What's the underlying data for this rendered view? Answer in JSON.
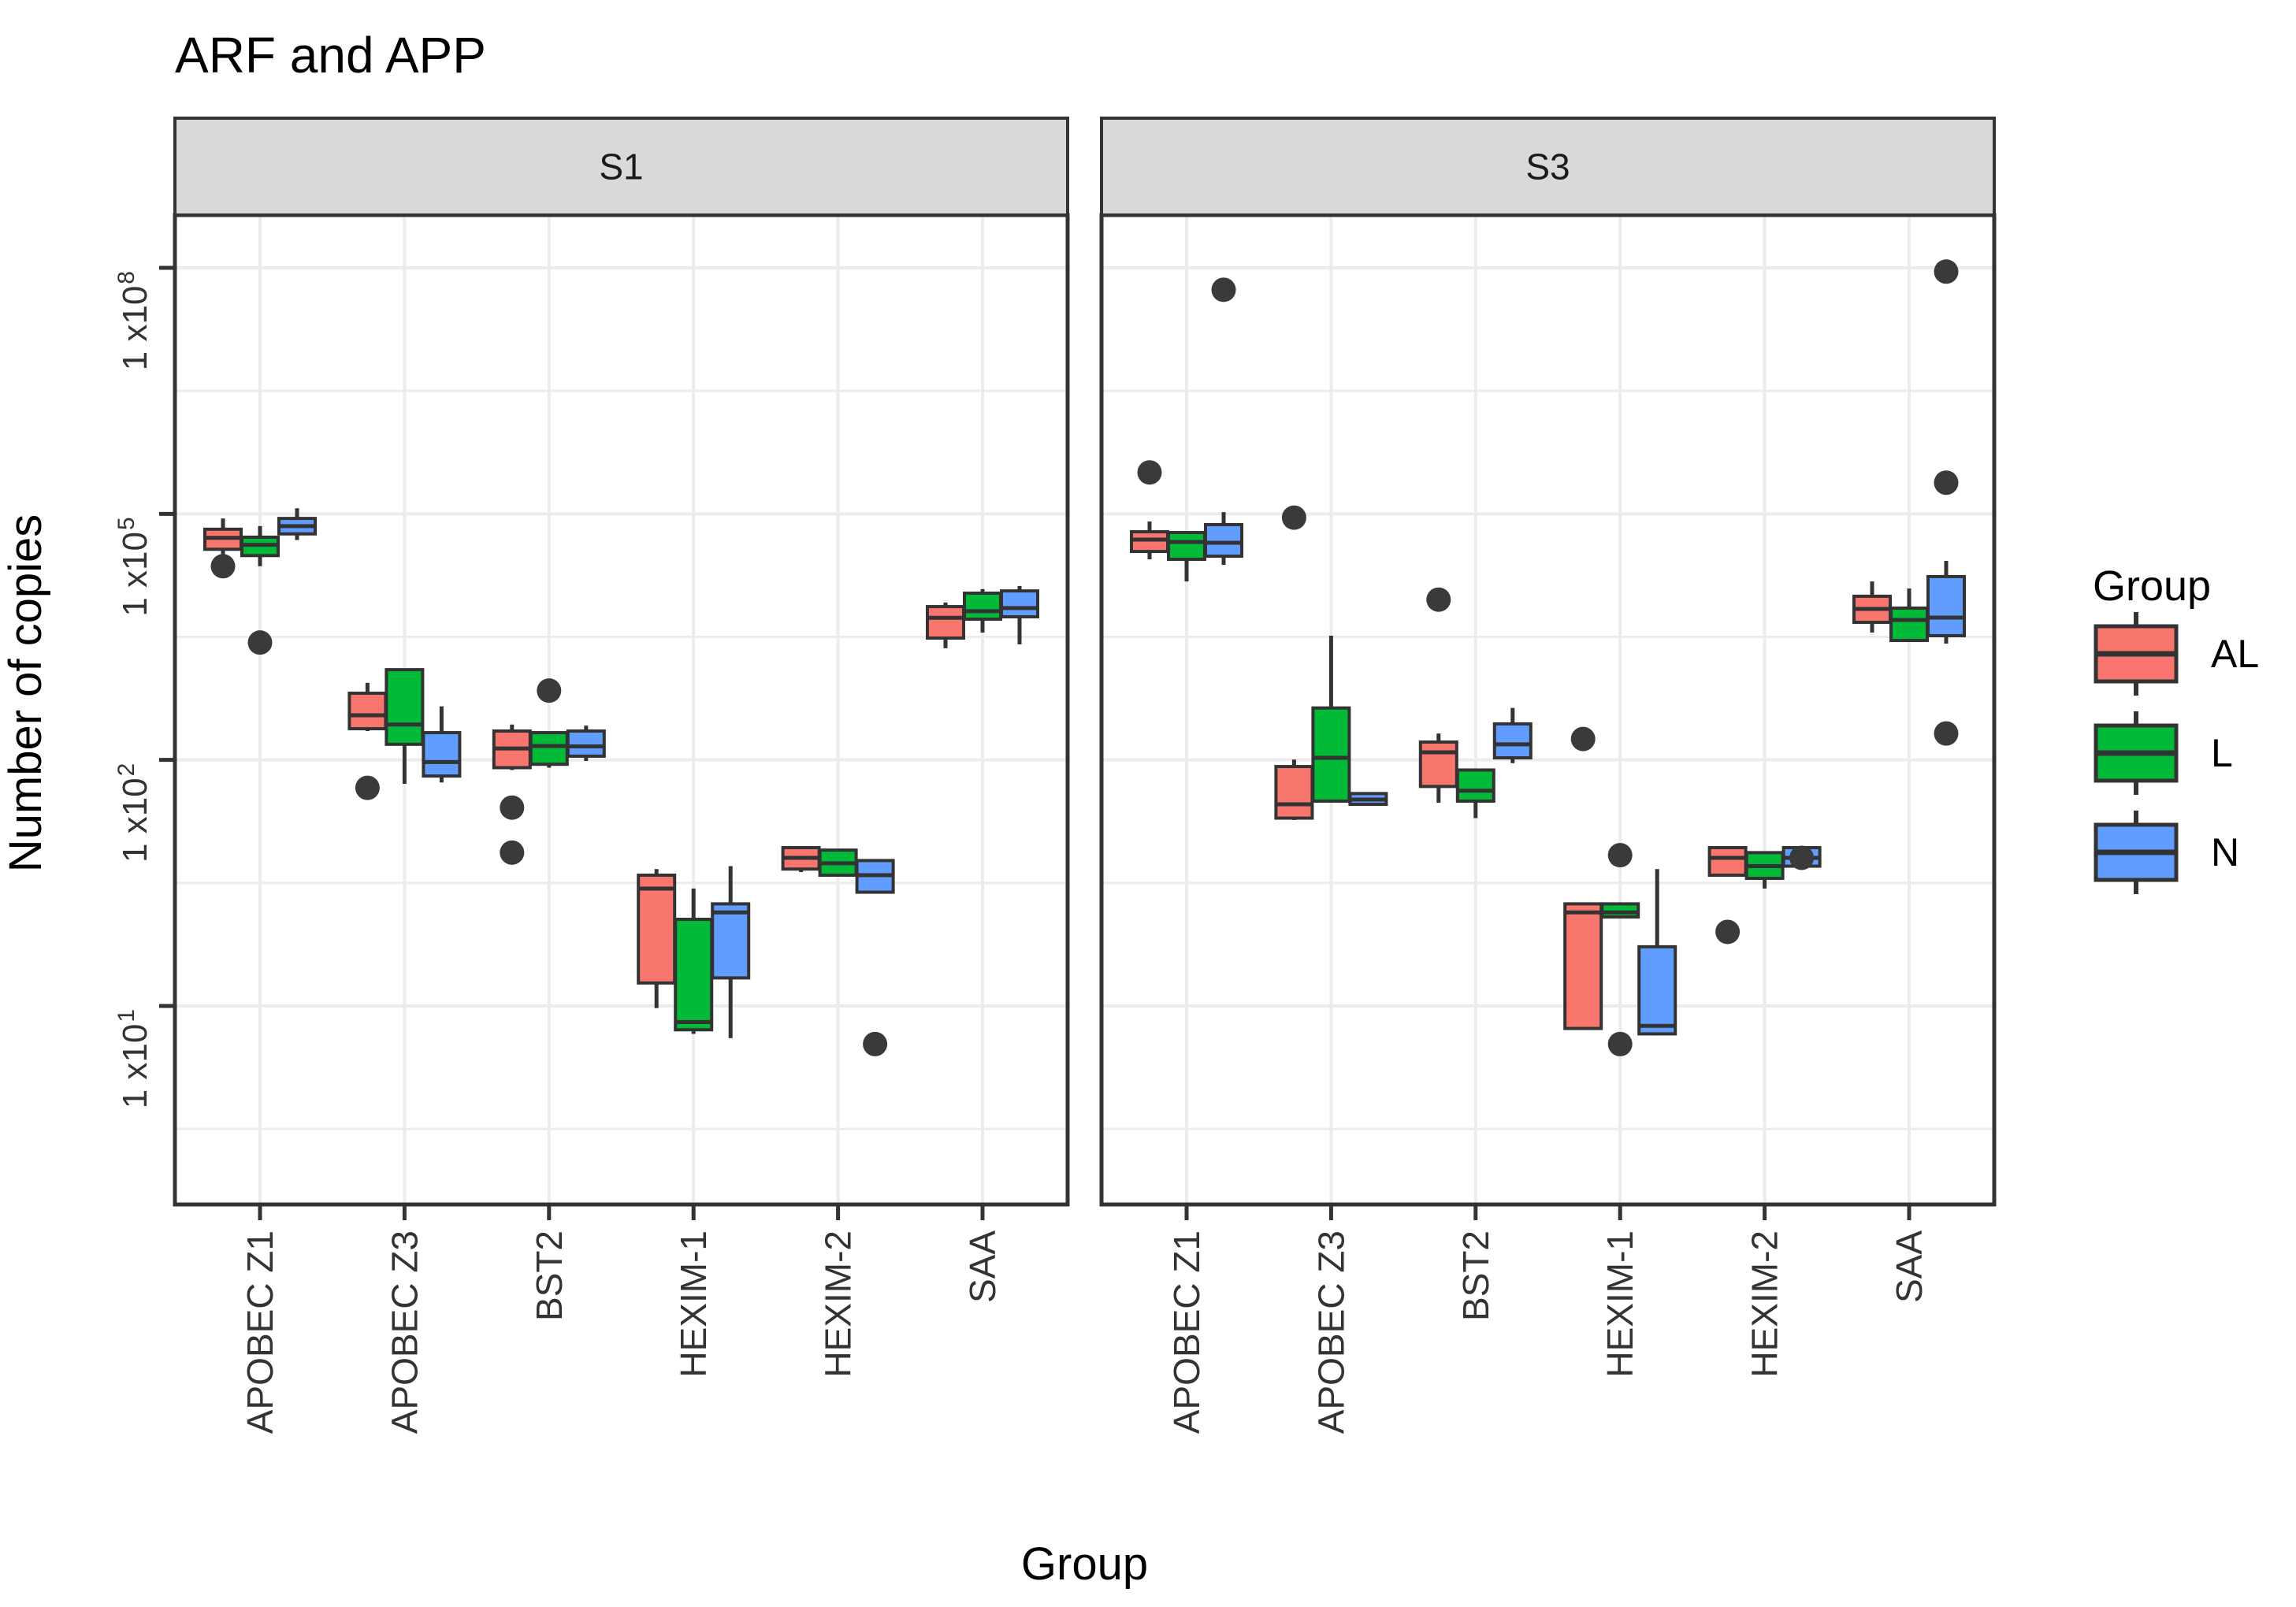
{
  "title": "ARF and APP",
  "facets": [
    "S1",
    "S3"
  ],
  "y_axis": {
    "title": "Number of copies",
    "ticks": [
      {
        "base": "1 x10",
        "exp": "8",
        "value": 100000000
      },
      {
        "base": "1 x10",
        "exp": "5",
        "value": 100000
      },
      {
        "base": "1 x10",
        "exp": "2",
        "value": 100
      },
      {
        "base": "1 x10",
        "exp": "1",
        "value": 10
      }
    ]
  },
  "x_axis": {
    "title": "Group",
    "categories": [
      "APOBEC Z1",
      "APOBEC Z3",
      "BST2",
      "HEXIM-1",
      "HEXIM-2",
      "SAA"
    ]
  },
  "legend": {
    "title": "Group",
    "entries": [
      {
        "label": "AL",
        "color": "#f8766d"
      },
      {
        "label": "L",
        "color": "#00ba38"
      },
      {
        "label": "N",
        "color": "#619cff"
      }
    ]
  },
  "style": {
    "box_border": "#333333",
    "dot_color": "#3a3a3a",
    "grid_color": "#ececec",
    "strip_fill": "#d9d9d9",
    "tick_text_color": "#333333",
    "text_color": "#000000"
  },
  "chart_data": {
    "type": "boxplot",
    "title": "ARF and APP",
    "ylabel": "Number of copies",
    "xlabel": "Group",
    "facets": [
      "S1",
      "S3"
    ],
    "categories": [
      "APOBEC Z1",
      "APOBEC Z3",
      "BST2",
      "HEXIM-1",
      "HEXIM-2",
      "SAA"
    ],
    "groups": [
      "AL",
      "L",
      "N"
    ],
    "y_scale": {
      "type": "log10-equal-spaced-breaks",
      "breaks": [
        100000000,
        100000,
        100,
        10
      ],
      "note": "labeled breaks are equally spaced on the axis; values interpolate log-linearly between adjacent breaks",
      "grid": true,
      "legend_position": "right"
    },
    "boxes": [
      {
        "facet": "S1",
        "category": "APOBEC Z1",
        "group": "AL",
        "whislo": 27000,
        "q1": 37000,
        "med": 51000,
        "q3": 65000,
        "whishi": 88000,
        "outliers": [
          23000
        ]
      },
      {
        "facet": "S1",
        "category": "APOBEC Z1",
        "group": "L",
        "whislo": 23000,
        "q1": 31000,
        "med": 42000,
        "q3": 52000,
        "whishi": 71000,
        "outliers": [
          2700
        ]
      },
      {
        "facet": "S1",
        "category": "APOBEC Z1",
        "group": "N",
        "whislo": 48000,
        "q1": 57000,
        "med": 71000,
        "q3": 88000,
        "whishi": 117000,
        "outliers": []
      },
      {
        "facet": "S1",
        "category": "APOBEC Z3",
        "group": "AL",
        "whislo": 225,
        "q1": 240,
        "med": 350,
        "q3": 650,
        "whishi": 870,
        "outliers": [
          77
        ]
      },
      {
        "facet": "S1",
        "category": "APOBEC Z3",
        "group": "L",
        "whislo": 80,
        "q1": 155,
        "med": 270,
        "q3": 1260,
        "whishi": 1260,
        "outliers": []
      },
      {
        "facet": "S1",
        "category": "APOBEC Z3",
        "group": "N",
        "whislo": 81,
        "q1": 86,
        "med": 98,
        "q3": 215,
        "whishi": 450,
        "outliers": []
      },
      {
        "facet": "S1",
        "category": "BST2",
        "group": "AL",
        "whislo": 91,
        "q1": 93,
        "med": 138,
        "q3": 225,
        "whishi": 270,
        "outliers": [
          64,
          42
        ]
      },
      {
        "facet": "S1",
        "category": "BST2",
        "group": "L",
        "whislo": 93,
        "q1": 96,
        "med": 148,
        "q3": 215,
        "whishi": 215,
        "outliers": [
          700
        ]
      },
      {
        "facet": "S1",
        "category": "BST2",
        "group": "N",
        "whislo": 99,
        "q1": 111,
        "med": 146,
        "q3": 225,
        "whishi": 262,
        "outliers": []
      },
      {
        "facet": "S1",
        "category": "HEXIM-1",
        "group": "AL",
        "whislo": 9.8,
        "q1": 12.4,
        "med": 30,
        "q3": 34,
        "whishi": 36,
        "outliers": []
      },
      {
        "facet": "S1",
        "category": "HEXIM-1",
        "group": "L",
        "whislo": 7.7,
        "q1": 8,
        "med": 8.6,
        "q3": 22.5,
        "whishi": 30,
        "outliers": []
      },
      {
        "facet": "S1",
        "category": "HEXIM-1",
        "group": "N",
        "whislo": 7.4,
        "q1": 13,
        "med": 24,
        "q3": 26,
        "whishi": 37,
        "outliers": []
      },
      {
        "facet": "S1",
        "category": "HEXIM-2",
        "group": "AL",
        "whislo": 35,
        "q1": 36,
        "med": 40,
        "q3": 44,
        "whishi": 44,
        "outliers": []
      },
      {
        "facet": "S1",
        "category": "HEXIM-2",
        "group": "L",
        "whislo": 34,
        "q1": 34,
        "med": 38,
        "q3": 43,
        "whishi": 43,
        "outliers": []
      },
      {
        "facet": "S1",
        "category": "HEXIM-2",
        "group": "N",
        "whislo": 29,
        "q1": 29,
        "med": 34,
        "q3": 39,
        "whishi": 39,
        "outliers": [
          7
        ]
      },
      {
        "facet": "S1",
        "category": "SAA",
        "group": "AL",
        "whislo": 2300,
        "q1": 3060,
        "med": 5400,
        "q3": 7400,
        "whishi": 8300,
        "outliers": []
      },
      {
        "facet": "S1",
        "category": "SAA",
        "group": "L",
        "whislo": 3570,
        "q1": 5200,
        "med": 6500,
        "q3": 10800,
        "whishi": 12100,
        "outliers": []
      },
      {
        "facet": "S1",
        "category": "SAA",
        "group": "N",
        "whislo": 2560,
        "q1": 5560,
        "med": 7100,
        "q3": 11500,
        "whishi": 13200,
        "outliers": []
      },
      {
        "facet": "S3",
        "category": "APOBEC Z1",
        "group": "AL",
        "whislo": 27900,
        "q1": 34800,
        "med": 48500,
        "q3": 60500,
        "whishi": 80700,
        "outliers": [
          320000
        ]
      },
      {
        "facet": "S3",
        "category": "APOBEC Z1",
        "group": "L",
        "whislo": 15000,
        "q1": 27900,
        "med": 45400,
        "q3": 59200,
        "whishi": 59200,
        "outliers": []
      },
      {
        "facet": "S3",
        "category": "APOBEC Z1",
        "group": "N",
        "whislo": 23900,
        "q1": 30500,
        "med": 44500,
        "q3": 74000,
        "whishi": 105000,
        "outliers": [
          54000000
        ]
      },
      {
        "facet": "S3",
        "category": "APOBEC Z3",
        "group": "AL",
        "whislo": 57,
        "q1": 58,
        "med": 66,
        "q3": 94,
        "whishi": 101,
        "outliers": [
          90000
        ]
      },
      {
        "facet": "S3",
        "category": "APOBEC Z3",
        "group": "L",
        "whislo": 67,
        "q1": 68,
        "med": 106,
        "q3": 430,
        "whishi": 3270,
        "outliers": []
      },
      {
        "facet": "S3",
        "category": "APOBEC Z3",
        "group": "N",
        "whislo": 66,
        "q1": 66,
        "med": 69,
        "q3": 73,
        "whishi": 73,
        "outliers": []
      },
      {
        "facet": "S3",
        "category": "BST2",
        "group": "AL",
        "whislo": 67,
        "q1": 78,
        "med": 124,
        "q3": 165,
        "whishi": 210,
        "outliers": [
          9000
        ]
      },
      {
        "facet": "S3",
        "category": "BST2",
        "group": "L",
        "whislo": 58,
        "q1": 68,
        "med": 75,
        "q3": 91,
        "whishi": 91,
        "outliers": []
      },
      {
        "facet": "S3",
        "category": "BST2",
        "group": "N",
        "whislo": 97,
        "q1": 106,
        "med": 155,
        "q3": 275,
        "whishi": 430,
        "outliers": []
      },
      {
        "facet": "S3",
        "category": "HEXIM-1",
        "group": "AL",
        "whislo": 8,
        "q1": 8.1,
        "med": 24,
        "q3": 26,
        "whishi": 26,
        "outliers": [
          180
        ]
      },
      {
        "facet": "S3",
        "category": "HEXIM-1",
        "group": "L",
        "whislo": 23,
        "q1": 23,
        "med": 24,
        "q3": 26,
        "whishi": 26,
        "outliers": [
          41,
          7
        ]
      },
      {
        "facet": "S3",
        "category": "HEXIM-1",
        "group": "N",
        "whislo": 7.6,
        "q1": 7.7,
        "med": 8.3,
        "q3": 17.4,
        "whishi": 36,
        "outliers": []
      },
      {
        "facet": "S3",
        "category": "HEXIM-2",
        "group": "AL",
        "whislo": 34,
        "q1": 34,
        "med": 40,
        "q3": 44,
        "whishi": 44,
        "outliers": [
          20
        ]
      },
      {
        "facet": "S3",
        "category": "HEXIM-2",
        "group": "L",
        "whislo": 30,
        "q1": 33,
        "med": 37,
        "q3": 42,
        "whishi": 42,
        "outliers": []
      },
      {
        "facet": "S3",
        "category": "HEXIM-2",
        "group": "N",
        "whislo": 37,
        "q1": 37,
        "med": 40,
        "q3": 44,
        "whishi": 44,
        "outliers": [
          40
        ]
      },
      {
        "facet": "S3",
        "category": "SAA",
        "group": "AL",
        "whislo": 3570,
        "q1": 4760,
        "med": 6940,
        "q3": 9900,
        "whishi": 15000,
        "outliers": []
      },
      {
        "facet": "S3",
        "category": "SAA",
        "group": "L",
        "whislo": 2860,
        "q1": 2860,
        "med": 5090,
        "q3": 7100,
        "whishi": 12300,
        "outliers": []
      },
      {
        "facet": "S3",
        "category": "SAA",
        "group": "N",
        "whislo": 2620,
        "q1": 3270,
        "med": 5430,
        "q3": 17200,
        "whishi": 26700,
        "outliers": [
          210,
          240000,
          90000000
        ]
      }
    ]
  }
}
